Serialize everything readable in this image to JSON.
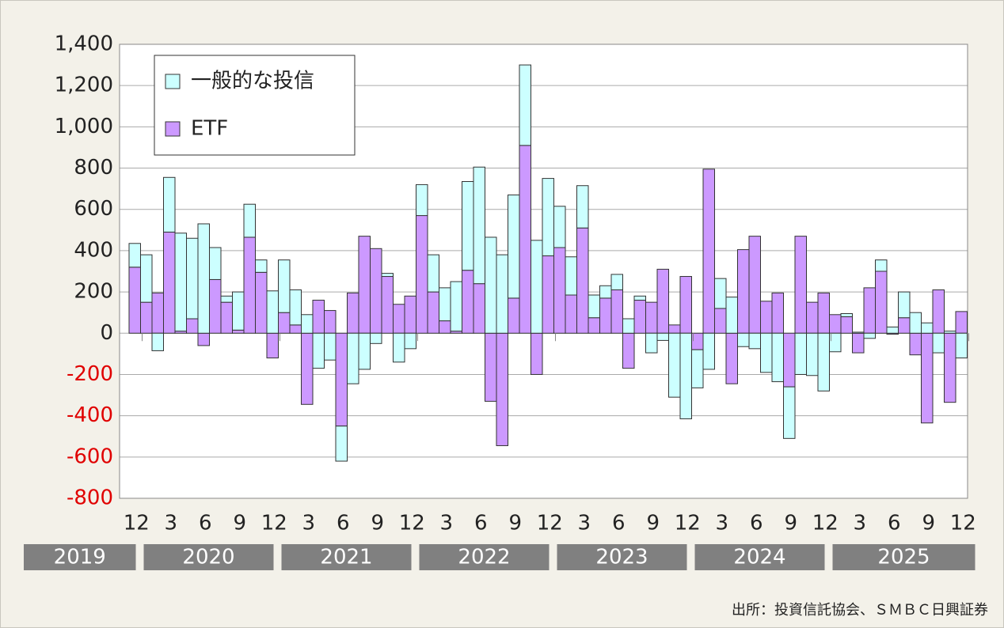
{
  "chart_data": {
    "type": "bar",
    "stacked": true,
    "categories": [
      "12",
      null,
      null,
      "3",
      null,
      null,
      "6",
      null,
      null,
      "9",
      null,
      null,
      "12",
      null,
      null,
      "3",
      null,
      null,
      "6",
      null,
      null,
      "9",
      null,
      null,
      "12",
      null,
      null,
      "3",
      null,
      null,
      "6",
      null,
      null,
      "9",
      null,
      null,
      "12",
      null,
      null,
      "3",
      null,
      null,
      "6",
      null,
      null,
      "9",
      null,
      null,
      "12",
      null,
      null,
      "3",
      null,
      null,
      "6",
      null,
      null,
      "9",
      null,
      null,
      "12",
      null,
      null,
      "3",
      null,
      null,
      "6",
      null,
      null,
      "9",
      null,
      null,
      "12"
    ],
    "years": [
      {
        "label": "2019",
        "from": 0,
        "to": 0
      },
      {
        "label": "2020",
        "from": 1,
        "to": 12
      },
      {
        "label": "2021",
        "from": 13,
        "to": 24
      },
      {
        "label": "2022",
        "from": 25,
        "to": 36
      },
      {
        "label": "2023",
        "from": 37,
        "to": 48
      },
      {
        "label": "2024",
        "from": 49,
        "to": 60
      },
      {
        "label": "2025",
        "from": 61,
        "to": 72
      }
    ],
    "series": [
      {
        "name": "一般的な投信",
        "color": "#ccffff",
        "values": [
          115,
          230,
          -85,
          265,
          475,
          390,
          530,
          155,
          30,
          185,
          160,
          60,
          205,
          255,
          170,
          90,
          -170,
          -130,
          -170,
          -245,
          -175,
          -50,
          15,
          -140,
          -75,
          150,
          180,
          160,
          240,
          430,
          565,
          465,
          380,
          500,
          390,
          450,
          375,
          200,
          185,
          205,
          110,
          60,
          75,
          70,
          20,
          -95,
          -35,
          -310,
          -415,
          -185,
          -175,
          145,
          175,
          -65,
          -75,
          -190,
          -235,
          -250,
          -200,
          -205,
          -280,
          -90,
          15,
          5,
          -25,
          55,
          30,
          125,
          100,
          50,
          -95,
          10,
          -120
        ]
      },
      {
        "name": "ETF",
        "color": "#cc99ff",
        "values": [
          320,
          150,
          195,
          490,
          10,
          70,
          -60,
          260,
          150,
          15,
          465,
          295,
          -120,
          100,
          40,
          -345,
          160,
          110,
          -450,
          195,
          470,
          410,
          275,
          140,
          180,
          570,
          200,
          60,
          10,
          305,
          240,
          -330,
          -545,
          170,
          910,
          -200,
          375,
          415,
          185,
          510,
          75,
          170,
          210,
          -170,
          160,
          150,
          310,
          40,
          275,
          -80,
          795,
          120,
          -245,
          405,
          470,
          155,
          195,
          -260,
          470,
          150,
          195,
          90,
          80,
          -95,
          220,
          300,
          -5,
          75,
          -105,
          -435,
          210,
          -335,
          105
        ]
      }
    ],
    "ylim": [
      -800,
      1400
    ],
    "yticks": [
      -800,
      -600,
      -400,
      -200,
      0,
      {
        "value": 200,
        "label": "200"
      },
      400,
      600,
      800,
      {
        "value": 1000,
        "label": "1,000"
      },
      {
        "value": 1200,
        "label": "1,200"
      },
      {
        "value": 1400,
        "label": "1,400"
      }
    ],
    "negative_tick_color": "#e00000",
    "grid": true,
    "legend": "top-left",
    "source": "出所：投資信託協会、ＳＭＢＣ日興証券"
  }
}
